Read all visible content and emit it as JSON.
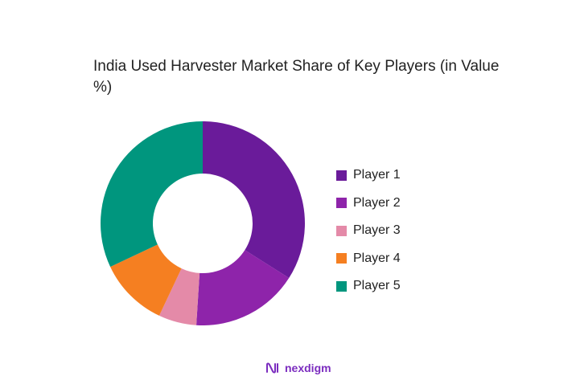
{
  "chart_data": {
    "type": "pie",
    "title": "India Used Harvester Market Share of Key Players (in Value %)",
    "categories": [
      "Player 1",
      "Player 2",
      "Player 3",
      "Player 4",
      "Player 5"
    ],
    "values": [
      34,
      17,
      6,
      11,
      32
    ],
    "unit": "%",
    "colors": [
      "#6a1b9a",
      "#8e24aa",
      "#e48aa8",
      "#f57f21",
      "#00967e"
    ],
    "donut": true,
    "legend_position": "right"
  },
  "brand": {
    "name": "nexdigm",
    "color": "#7b2cbf"
  }
}
